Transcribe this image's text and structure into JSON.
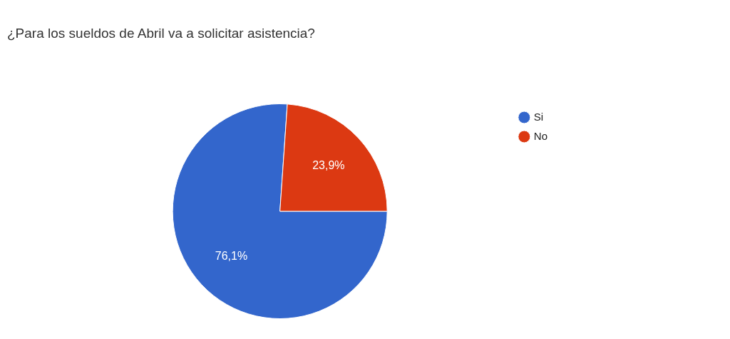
{
  "chart_data": {
    "type": "pie",
    "title": "¿Para los sueldos de Abril va a solicitar asistencia?",
    "categories": [
      "Si",
      "No"
    ],
    "values": [
      76.1,
      23.9
    ],
    "colors": [
      "#3366cc",
      "#dc3912"
    ],
    "value_labels": [
      "76,1%",
      "23,9%"
    ],
    "legend": "top right"
  }
}
